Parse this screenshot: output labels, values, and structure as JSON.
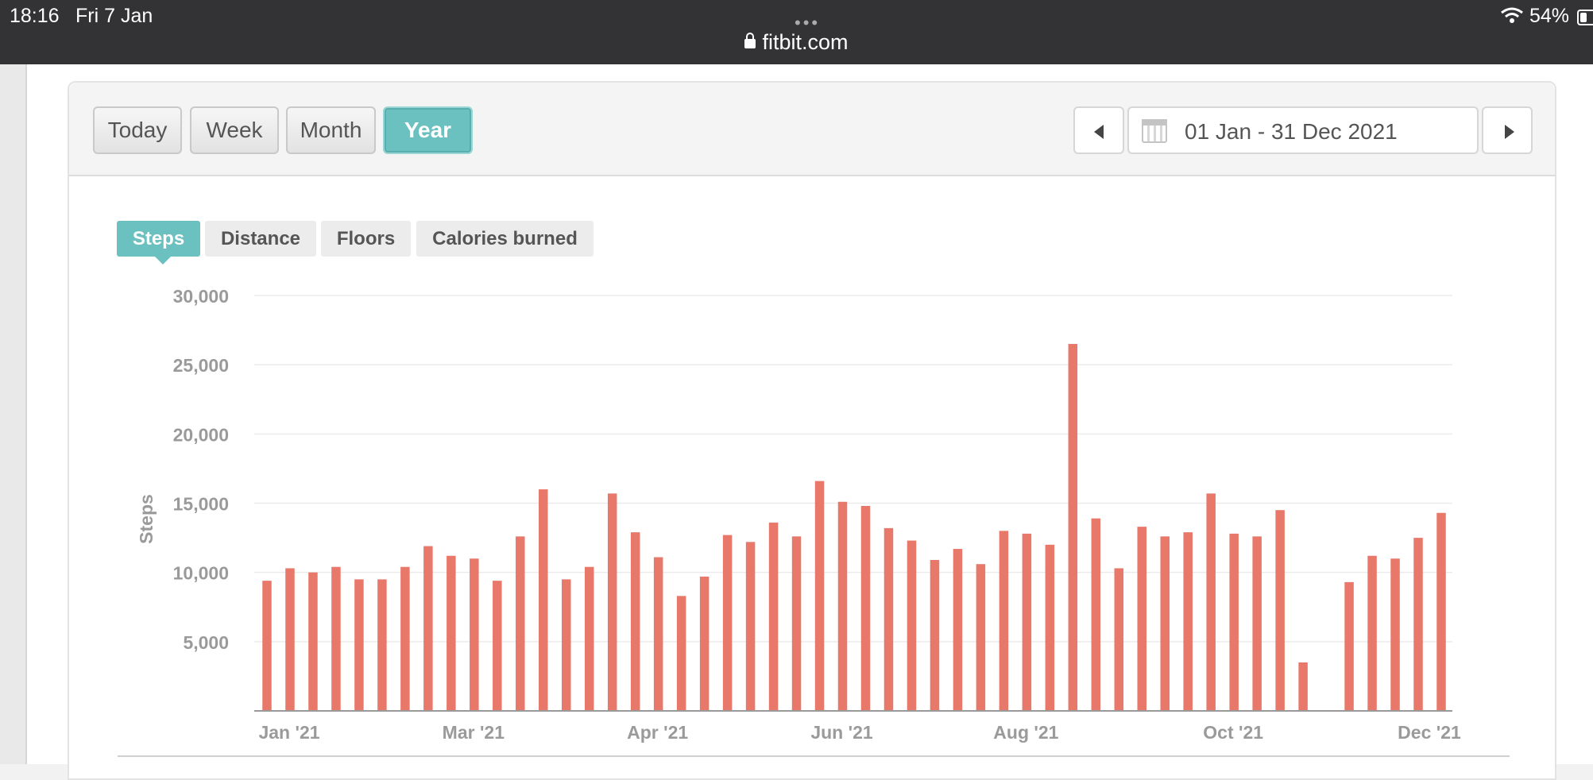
{
  "status_bar": {
    "time": "18:16",
    "date": "Fri 7 Jan",
    "dots": "•••",
    "url": "fitbit.com",
    "battery": "54%"
  },
  "range_tabs": [
    "Today",
    "Week",
    "Month",
    "Year"
  ],
  "active_range": "Year",
  "date_range": "01 Jan - 31 Dec 2021",
  "metric_tabs": [
    "Steps",
    "Distance",
    "Floors",
    "Calories burned"
  ],
  "active_metric": "Steps",
  "colors": {
    "accent": "#6bc0c0",
    "bar": "#e8796a",
    "header": "#333336"
  },
  "chart_data": {
    "type": "bar",
    "title": "",
    "xlabel": "",
    "ylabel": "Steps",
    "ylim": [
      0,
      30000
    ],
    "yticks": [
      5000,
      10000,
      15000,
      20000,
      25000,
      30000
    ],
    "ytick_labels": [
      "5,000",
      "10,000",
      "15,000",
      "20,000",
      "25,000",
      "30,000"
    ],
    "xtick_labels": [
      "Jan '21",
      "Mar '21",
      "Apr '21",
      "Jun '21",
      "Aug '21",
      "Oct '21",
      "Dec '21"
    ],
    "grid": true,
    "series": [
      {
        "values": [
          9400,
          10300,
          10000,
          10400,
          9500,
          9500,
          10400,
          11900,
          11200,
          11000,
          9400,
          12600,
          16000,
          9500,
          10400,
          15700,
          12900,
          11100,
          8300,
          9700,
          12700,
          12200,
          13600,
          12600,
          16600,
          15100,
          14800,
          13200,
          12300,
          10900,
          11700,
          10600,
          13000,
          12800,
          12000,
          26500,
          13900,
          10300,
          13300,
          12600,
          12900,
          15700,
          12800,
          12600,
          14500,
          3500,
          0,
          9300,
          11200,
          11000,
          12500,
          14300
        ]
      }
    ]
  }
}
